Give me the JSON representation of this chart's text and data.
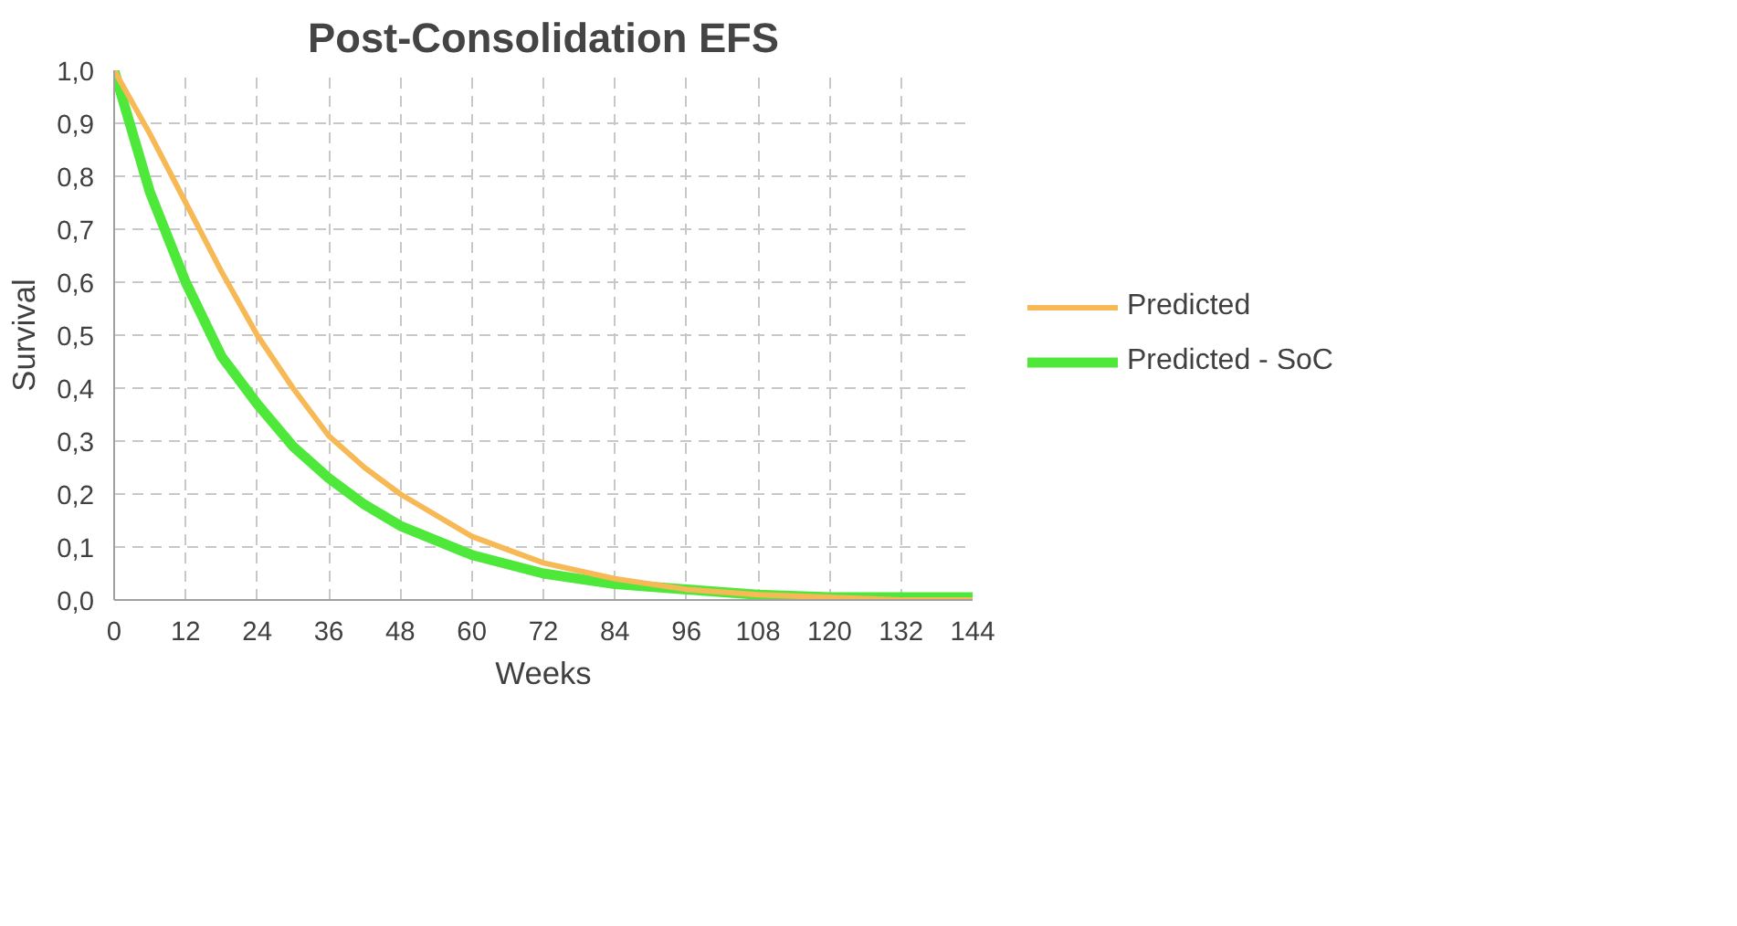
{
  "chart_data": {
    "type": "line",
    "title": "Post-Consolidation EFS",
    "xlabel": "Weeks",
    "ylabel": "Survival",
    "x": [
      0,
      6,
      12,
      18,
      24,
      30,
      36,
      42,
      48,
      60,
      72,
      84,
      96,
      108,
      120,
      132,
      144
    ],
    "series": [
      {
        "name": "Predicted",
        "color": "#f7b955",
        "values": [
          1.0,
          0.88,
          0.75,
          0.62,
          0.5,
          0.4,
          0.31,
          0.25,
          0.2,
          0.12,
          0.07,
          0.04,
          0.02,
          0.01,
          0.005,
          0.0,
          0.0
        ]
      },
      {
        "name": "Predicted - SoC",
        "color": "#4ee83a",
        "values": [
          1.0,
          0.77,
          0.6,
          0.46,
          0.37,
          0.29,
          0.23,
          0.18,
          0.14,
          0.085,
          0.05,
          0.03,
          0.02,
          0.01,
          0.005,
          0.005,
          0.005
        ]
      }
    ],
    "xlim": [
      0,
      144
    ],
    "xticks": [
      0,
      12,
      24,
      36,
      48,
      60,
      72,
      84,
      96,
      108,
      120,
      132,
      144
    ],
    "ylim": [
      0,
      1
    ],
    "yticks": [
      {
        "value": 0,
        "label": "0,0"
      },
      {
        "value": 0.1,
        "label": "0,1"
      },
      {
        "value": 0.2,
        "label": "0,2"
      },
      {
        "value": 0.3,
        "label": "0,3"
      },
      {
        "value": 0.4,
        "label": "0,4"
      },
      {
        "value": 0.5,
        "label": "0,5"
      },
      {
        "value": 0.6,
        "label": "0,6"
      },
      {
        "value": 0.7,
        "label": "0,7"
      },
      {
        "value": 0.8,
        "label": "0,8"
      },
      {
        "value": 0.9,
        "label": "0,9"
      },
      {
        "value": 1,
        "label": "1,0"
      }
    ],
    "grid": true,
    "legend": "right",
    "marker": "none",
    "line_style": "solid"
  }
}
